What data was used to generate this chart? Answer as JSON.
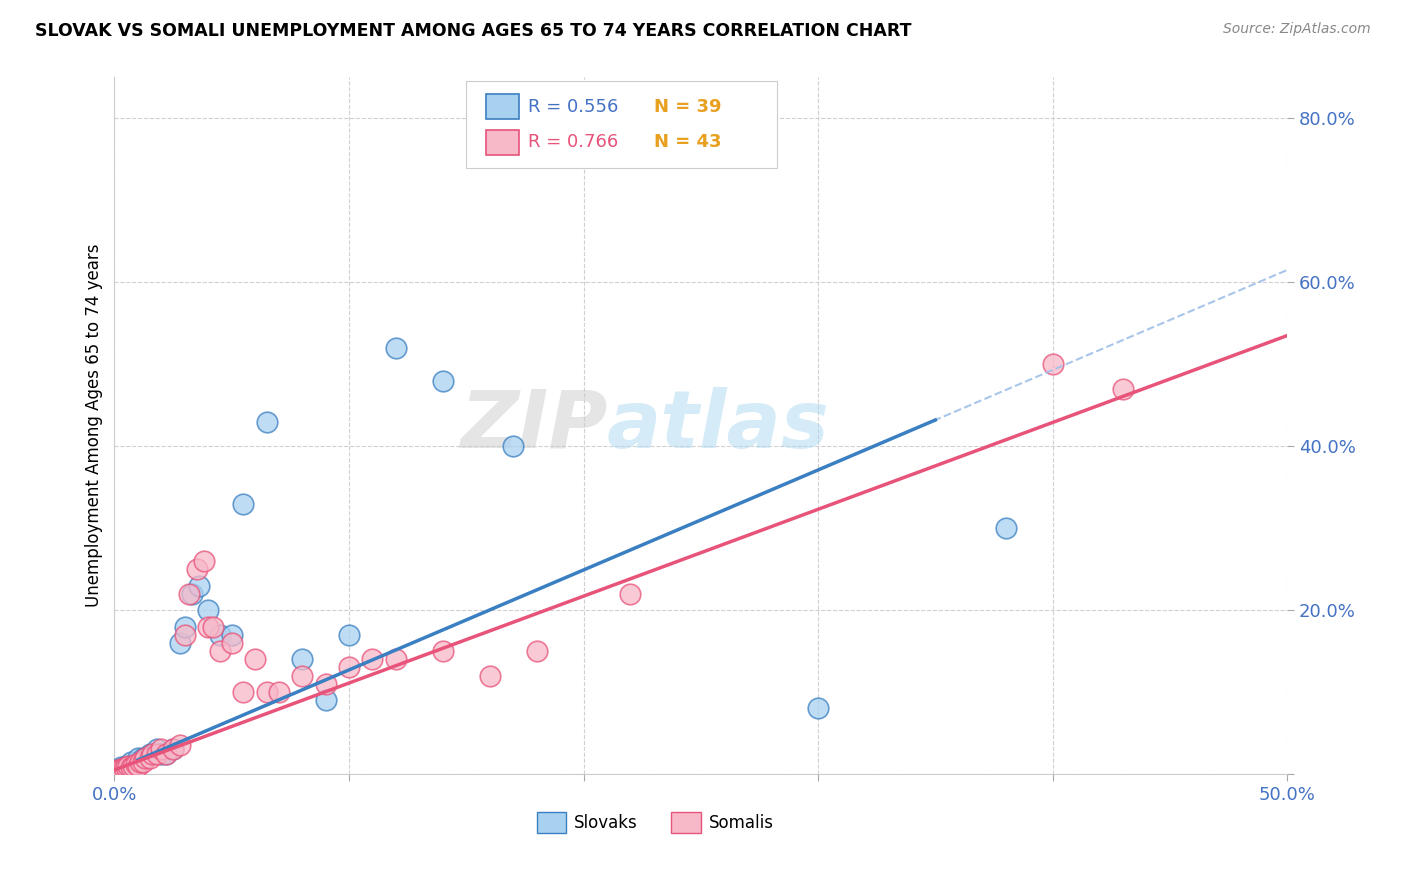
{
  "title": "SLOVAK VS SOMALI UNEMPLOYMENT AMONG AGES 65 TO 74 YEARS CORRELATION CHART",
  "source": "Source: ZipAtlas.com",
  "xlabel": "",
  "ylabel": "Unemployment Among Ages 65 to 74 years",
  "xlim": [
    0.0,
    0.5
  ],
  "ylim": [
    0.0,
    0.85
  ],
  "xticks": [
    0.0,
    0.1,
    0.2,
    0.3,
    0.4,
    0.5
  ],
  "xticklabels": [
    "0.0%",
    "",
    "",
    "",
    "",
    "50.0%"
  ],
  "yticks": [
    0.0,
    0.2,
    0.4,
    0.6,
    0.8
  ],
  "yticklabels": [
    "",
    "20.0%",
    "40.0%",
    "60.0%",
    "80.0%"
  ],
  "legend_r_slovak": "R = 0.556",
  "legend_n_slovak": "N = 39",
  "legend_r_somali": "R = 0.766",
  "legend_n_somali": "N = 43",
  "color_slovak": "#a8d1f0",
  "color_somali": "#f7b8c8",
  "color_slovak_line": "#3a7fc1",
  "color_somali_line": "#e8537a",
  "color_trendline_ext": "#a0c0e8",
  "watermark_zip": "ZIP",
  "watermark_atlas": "atlas",
  "slovak_line_slope": 1.22,
  "slovak_line_intercept": 0.005,
  "somali_line_slope": 1.06,
  "somali_line_intercept": 0.005,
  "slovak_x": [
    0.001,
    0.002,
    0.003,
    0.004,
    0.005,
    0.005,
    0.006,
    0.007,
    0.007,
    0.008,
    0.009,
    0.01,
    0.01,
    0.011,
    0.012,
    0.013,
    0.015,
    0.016,
    0.018,
    0.02,
    0.022,
    0.025,
    0.028,
    0.03,
    0.033,
    0.036,
    0.04,
    0.045,
    0.05,
    0.055,
    0.065,
    0.08,
    0.09,
    0.1,
    0.12,
    0.14,
    0.17,
    0.3,
    0.38
  ],
  "slovak_y": [
    0.005,
    0.005,
    0.008,
    0.005,
    0.006,
    0.01,
    0.008,
    0.01,
    0.015,
    0.01,
    0.012,
    0.015,
    0.02,
    0.015,
    0.02,
    0.02,
    0.025,
    0.025,
    0.03,
    0.025,
    0.025,
    0.03,
    0.16,
    0.18,
    0.22,
    0.23,
    0.2,
    0.17,
    0.17,
    0.33,
    0.43,
    0.14,
    0.09,
    0.17,
    0.52,
    0.48,
    0.4,
    0.08,
    0.3
  ],
  "somali_x": [
    0.001,
    0.002,
    0.003,
    0.004,
    0.005,
    0.006,
    0.007,
    0.008,
    0.009,
    0.01,
    0.011,
    0.012,
    0.013,
    0.015,
    0.016,
    0.018,
    0.02,
    0.022,
    0.025,
    0.028,
    0.03,
    0.032,
    0.035,
    0.038,
    0.04,
    0.042,
    0.045,
    0.05,
    0.055,
    0.06,
    0.065,
    0.07,
    0.08,
    0.09,
    0.1,
    0.11,
    0.12,
    0.14,
    0.16,
    0.18,
    0.22,
    0.4,
    0.43
  ],
  "somali_y": [
    0.005,
    0.005,
    0.006,
    0.007,
    0.008,
    0.01,
    0.008,
    0.01,
    0.012,
    0.01,
    0.015,
    0.015,
    0.02,
    0.02,
    0.025,
    0.025,
    0.03,
    0.025,
    0.03,
    0.035,
    0.17,
    0.22,
    0.25,
    0.26,
    0.18,
    0.18,
    0.15,
    0.16,
    0.1,
    0.14,
    0.1,
    0.1,
    0.12,
    0.11,
    0.13,
    0.14,
    0.14,
    0.15,
    0.12,
    0.15,
    0.22,
    0.5,
    0.47
  ]
}
